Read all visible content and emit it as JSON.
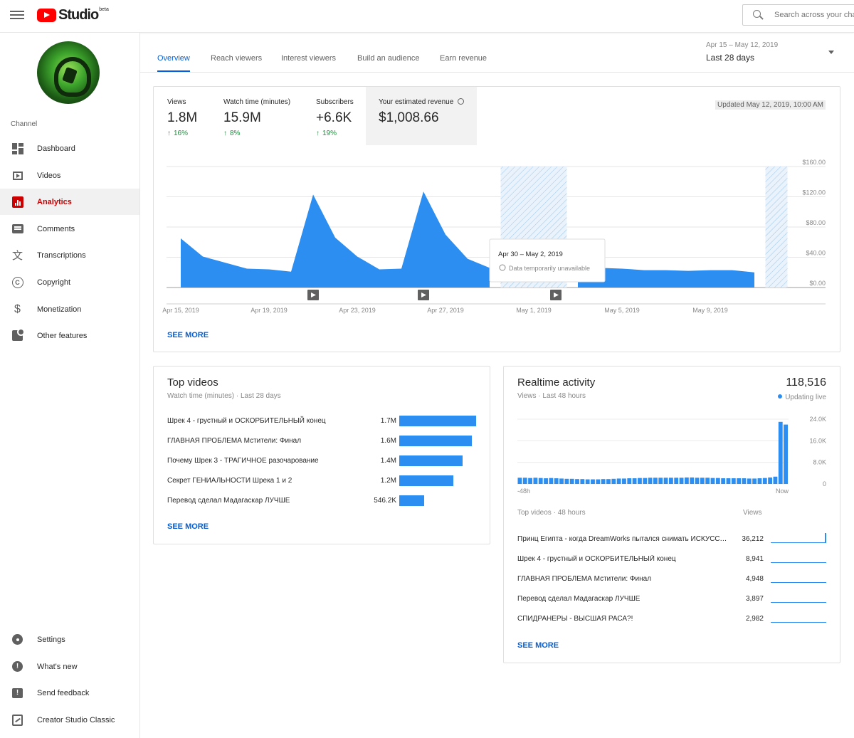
{
  "header": {
    "logo_text": "Studio",
    "logo_badge": "beta",
    "search_placeholder": "Search across your channel"
  },
  "sidebar": {
    "section_label": "Channel",
    "items": [
      {
        "label": "Dashboard",
        "icon": "dashboard-icon"
      },
      {
        "label": "Videos",
        "icon": "videos-icon"
      },
      {
        "label": "Analytics",
        "icon": "analytics-icon",
        "active": true
      },
      {
        "label": "Comments",
        "icon": "comments-icon"
      },
      {
        "label": "Transcriptions",
        "icon": "translate-icon"
      },
      {
        "label": "Copyright",
        "icon": "copyright-icon"
      },
      {
        "label": "Monetization",
        "icon": "dollar-icon"
      },
      {
        "label": "Other features",
        "icon": "features-icon"
      }
    ],
    "bottom_items": [
      {
        "label": "Settings",
        "icon": "gear-icon"
      },
      {
        "label": "What's new",
        "icon": "whats-new-icon"
      },
      {
        "label": "Send feedback",
        "icon": "feedback-icon"
      },
      {
        "label": "Creator Studio Classic",
        "icon": "classic-icon"
      }
    ]
  },
  "tabs": [
    "Overview",
    "Reach viewers",
    "Interest viewers",
    "Build an audience",
    "Earn revenue"
  ],
  "date_range": {
    "sub": "Apr 15 – May 12, 2019",
    "main": "Last 28 days"
  },
  "metrics": [
    {
      "label": "Views",
      "value": "1.8M",
      "delta": "16%"
    },
    {
      "label": "Watch time (minutes)",
      "value": "15.9M",
      "delta": "8%"
    },
    {
      "label": "Subscribers",
      "value": "+6.6K",
      "delta": "19%"
    },
    {
      "label": "Your estimated revenue",
      "value": "$1,008.66"
    }
  ],
  "updated": "Updated May 12, 2019, 10:00 AM",
  "see_more": "SEE MORE",
  "tooltip": {
    "title": "Apr 30 – May 2, 2019",
    "note": "Data temporarily unavailable"
  },
  "chart_data": [
    {
      "type": "area",
      "title": "",
      "xlabel": "",
      "ylabel": "",
      "x": [
        "Apr 15",
        "Apr 16",
        "Apr 17",
        "Apr 18",
        "Apr 19",
        "Apr 20",
        "Apr 21",
        "Apr 22",
        "Apr 23",
        "Apr 24",
        "Apr 25",
        "Apr 26",
        "Apr 27",
        "Apr 28",
        "Apr 29",
        "Apr 30",
        "May 1",
        "May 2",
        "May 3",
        "May 4",
        "May 5",
        "May 6",
        "May 7",
        "May 8",
        "May 9",
        "May 10",
        "May 11",
        "May 12"
      ],
      "series": [
        {
          "values": [
            65,
            41,
            33,
            25,
            24,
            21,
            123,
            66,
            41,
            24,
            25,
            127,
            70,
            38,
            26,
            null,
            null,
            null,
            30,
            26,
            25,
            23,
            23,
            22,
            23,
            23,
            20,
            null
          ]
        }
      ],
      "unavailable_ranges": [
        [
          15,
          17
        ],
        [
          27,
          27
        ]
      ],
      "x_tick_labels": [
        "Apr 15, 2019",
        "Apr 19, 2019",
        "Apr 23, 2019",
        "Apr 27, 2019",
        "May 1, 2019",
        "May 5, 2019",
        "May 9, 2019"
      ],
      "y_tick_labels": [
        "$0.00",
        "$40.00",
        "$80.00",
        "$120.00",
        "$160.00"
      ],
      "ylim": [
        0,
        160
      ],
      "video_markers": [
        6,
        11,
        17
      ],
      "color": "#2b8ef0",
      "grid": true
    },
    {
      "type": "bar",
      "title": "",
      "xlabel": "",
      "ylabel": "",
      "x_tick_labels": [
        "-48h",
        "Now"
      ],
      "y_tick_labels": [
        "0",
        "8.0K",
        "16.0K",
        "24.0K"
      ],
      "ylim": [
        0,
        24000
      ],
      "values": [
        2300,
        2300,
        2200,
        2300,
        2200,
        2100,
        2200,
        2100,
        2000,
        1900,
        1900,
        1800,
        1800,
        1700,
        1700,
        1700,
        1800,
        1800,
        1900,
        2000,
        2000,
        2100,
        2100,
        2200,
        2200,
        2300,
        2300,
        2300,
        2300,
        2300,
        2300,
        2300,
        2400,
        2400,
        2300,
        2300,
        2300,
        2200,
        2200,
        2100,
        2100,
        2100,
        2100,
        2100,
        2000,
        2000,
        2100,
        2200,
        2400,
        2700,
        23000,
        22000
      ],
      "color": "#2b8ef0",
      "grid": true
    }
  ],
  "top_videos": {
    "title": "Top videos",
    "subtitle": "Watch time (minutes) · Last 28 days",
    "items": [
      {
        "title": "Шрек 4 - грустный и ОСКОРБИТЕЛЬНЫЙ конец",
        "value": "1.7M",
        "amount": 1.7
      },
      {
        "title": "ГЛАВНАЯ ПРОБЛЕМА Мстители: Финал",
        "value": "1.6M",
        "amount": 1.6
      },
      {
        "title": "Почему Шрек 3 - ТРАГИЧНОЕ разочарование",
        "value": "1.4M",
        "amount": 1.4
      },
      {
        "title": "Секрет ГЕНИАЛЬНОСТИ Шрека 1 и 2",
        "value": "1.2M",
        "amount": 1.2
      },
      {
        "title": "Перевод сделал Мадагаскар ЛУЧШЕ",
        "value": "546.2K",
        "amount": 0.5462
      }
    ]
  },
  "realtime": {
    "title": "Realtime activity",
    "subtitle": "Views · Last 48 hours",
    "total": "118,516",
    "live": "Updating live",
    "list_header": "Top videos · 48 hours",
    "list_value_header": "Views",
    "items": [
      {
        "title": "Принц Египта - когда DreamWorks пытался снимать ИСКУССТВО",
        "value": "36,212"
      },
      {
        "title": "Шрек 4 - грустный и ОСКОРБИТЕЛЬНЫЙ конец",
        "value": "8,941"
      },
      {
        "title": "ГЛАВНАЯ ПРОБЛЕМА Мстители: Финал",
        "value": "4,948"
      },
      {
        "title": "Перевод сделал Мадагаскар ЛУЧШЕ",
        "value": "3,897"
      },
      {
        "title": "СПИДРАНЕРЫ - ВЫСШАЯ РАСА?!",
        "value": "2,982"
      }
    ]
  }
}
